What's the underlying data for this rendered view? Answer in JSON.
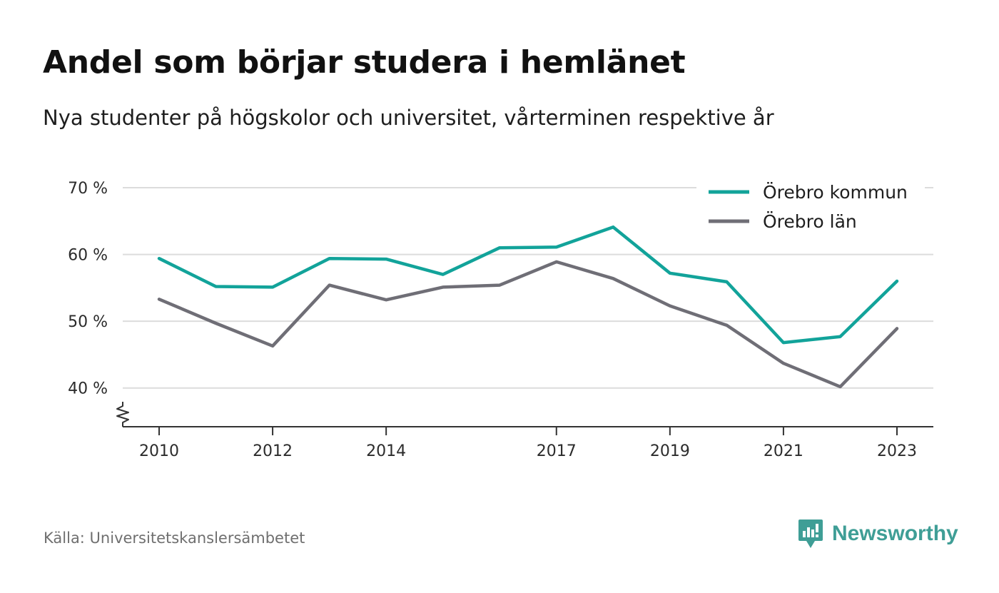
{
  "header": {
    "title": "Andel som börjar studera i hemlänet",
    "subtitle": "Nya studenter på högskolor och universitet, vårterminen respektive år"
  },
  "footer": {
    "source": "Källa: Universitetskanslersämbetet",
    "brand": "Newsworthy",
    "brand_icon": "newsworthy-logo-icon"
  },
  "colors": {
    "kommun": "#12a39a",
    "lan": "#6f6e76",
    "grid": "#dcdcdc",
    "axis": "#333333",
    "brand": "#3f9e96"
  },
  "chart_data": {
    "type": "line",
    "x": [
      2010,
      2011,
      2012,
      2013,
      2014,
      2015,
      2016,
      2017,
      2018,
      2019,
      2020,
      2021,
      2022,
      2023
    ],
    "x_tick_values": [
      2010,
      2012,
      2014,
      2017,
      2019,
      2021,
      2023
    ],
    "x_tick_labels": [
      "2010",
      "2012",
      "2014",
      "2017",
      "2019",
      "2021",
      "2023"
    ],
    "y_tick_values": [
      40,
      50,
      60,
      70
    ],
    "y_tick_labels": [
      "40 %",
      "50 %",
      "60 %",
      "70 %"
    ],
    "ylim": [
      34.2,
      70
    ],
    "y_axis_break": true,
    "grid": true,
    "legend_position": "top-right",
    "series": [
      {
        "name": "Örebro kommun",
        "color_key": "kommun",
        "values": [
          59.4,
          55.2,
          55.1,
          59.4,
          59.3,
          57.0,
          61.0,
          61.1,
          64.1,
          57.2,
          55.9,
          46.8,
          47.7,
          56.0
        ]
      },
      {
        "name": "Örebro län",
        "color_key": "lan",
        "values": [
          53.3,
          49.7,
          46.3,
          55.4,
          53.2,
          55.1,
          55.4,
          58.9,
          56.4,
          52.3,
          49.4,
          43.7,
          40.2,
          48.9
        ]
      }
    ]
  }
}
